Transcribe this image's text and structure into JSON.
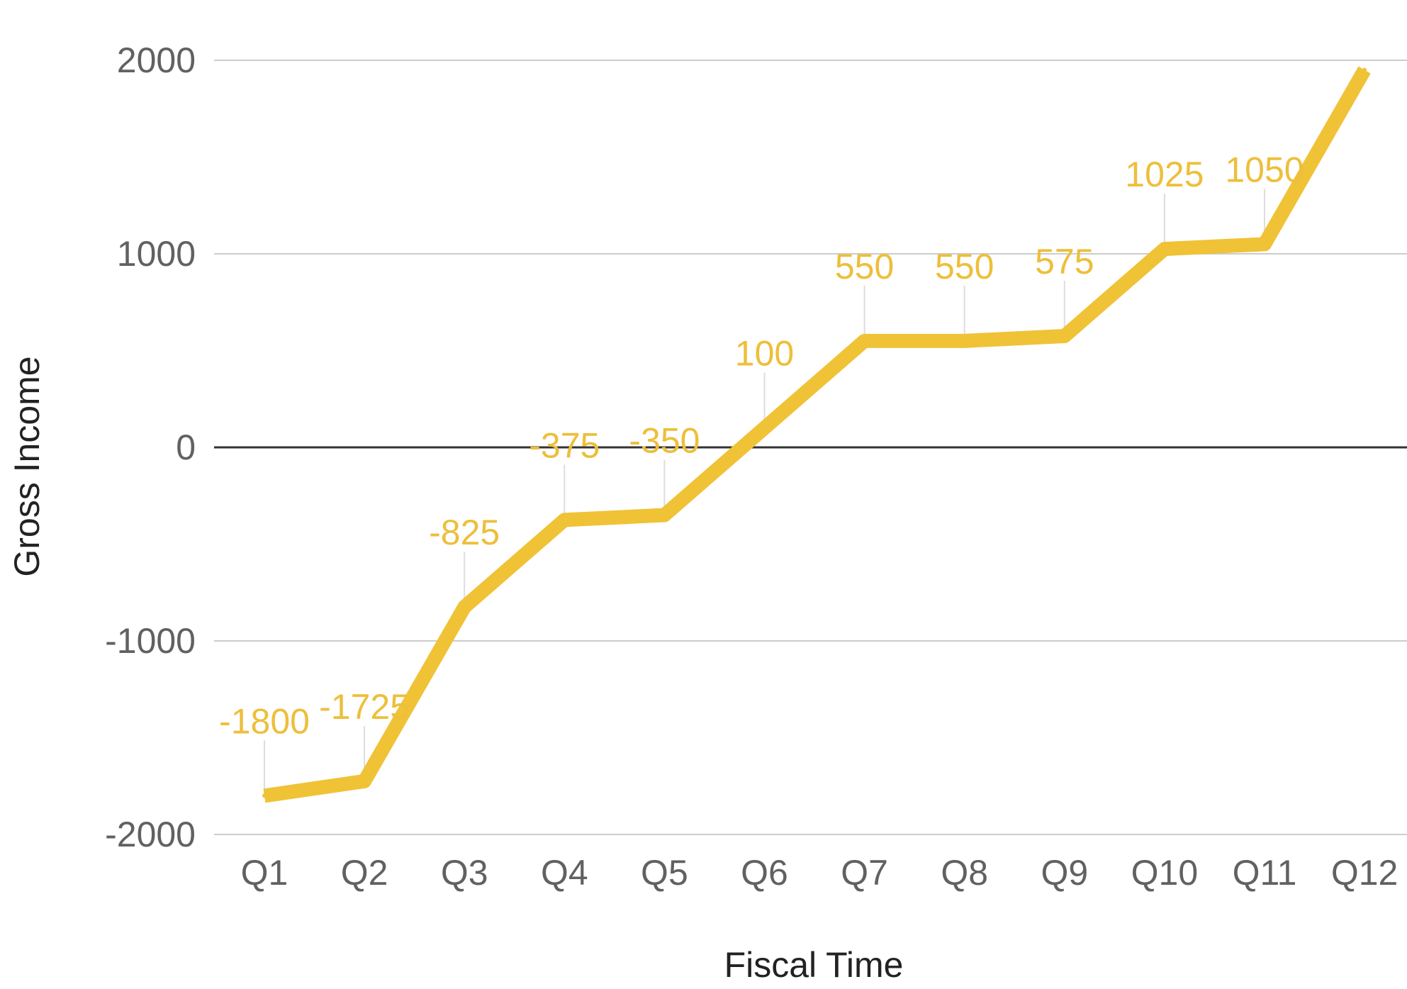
{
  "chart_data": {
    "type": "line",
    "categories": [
      "Q1",
      "Q2",
      "Q3",
      "Q4",
      "Q5",
      "Q6",
      "Q7",
      "Q8",
      "Q9",
      "Q10",
      "Q11",
      "Q12"
    ],
    "series": [
      {
        "values": [
          -1800,
          -1725,
          -825,
          -375,
          -350,
          100,
          550,
          550,
          575,
          1025,
          1050,
          1950
        ],
        "data_labels": [
          "-1800",
          "-1725",
          "-825",
          "-375",
          "-350",
          "100",
          "550",
          "550",
          "575",
          "1025",
          "1050",
          ""
        ]
      }
    ],
    "xlabel": "Fiscal Time",
    "ylabel": "Gross Income",
    "ylim": [
      -2000,
      2000
    ],
    "yticks": [
      "-2000",
      "-1000",
      "0",
      "1000",
      "2000"
    ],
    "grid": true,
    "legend": "none",
    "colors": {
      "line": "#F0C236",
      "data_label": "#EDBF3A",
      "gridline": "#CCCCCC",
      "zero_line": "#333333",
      "tick_label": "#616161",
      "axis_title": "#222222",
      "label_leader": "#DDDDDD"
    }
  }
}
